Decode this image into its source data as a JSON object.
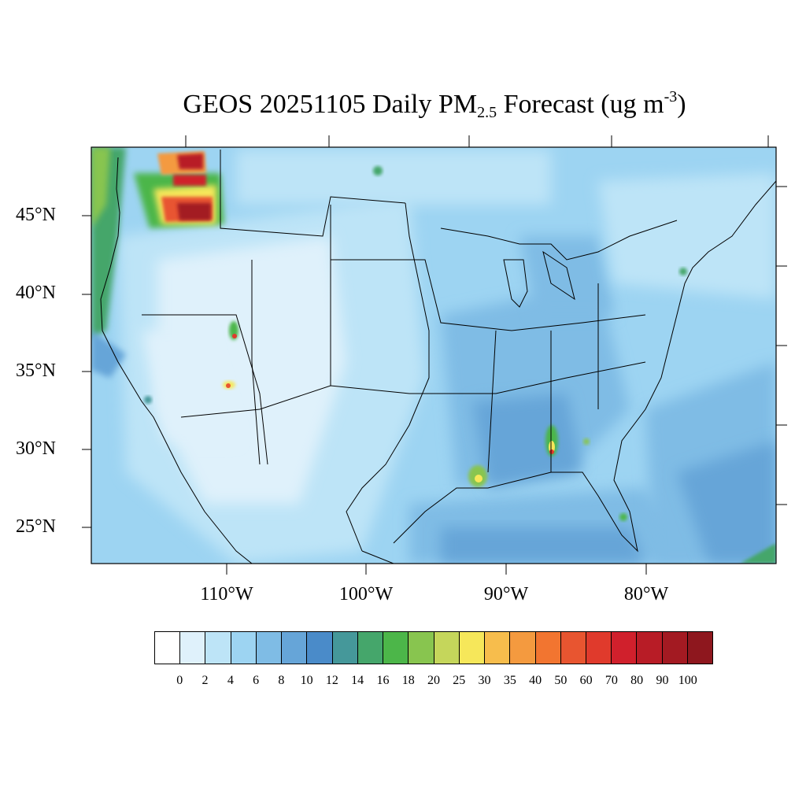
{
  "title": {
    "main": "GEOS 20251105 Daily PM",
    "subscript": "2.5",
    "rest": " Forecast (ug m",
    "superscript": "-3",
    "close": ")"
  },
  "map": {
    "lat_labels": [
      "45°N",
      "40°N",
      "35°N",
      "30°N",
      "25°N"
    ],
    "lon_labels": [
      "110°W",
      "100°W",
      "90°W",
      "80°W"
    ],
    "hotspots": [
      {
        "name": "northern-idaho-smoke",
        "level": "80-100"
      },
      {
        "name": "washington-cascades",
        "level": "90-100"
      },
      {
        "name": "utah-fire",
        "level": "70-80"
      },
      {
        "name": "arizona-fire",
        "level": "60-70"
      },
      {
        "name": "louisiana-coast",
        "level": "20-30"
      },
      {
        "name": "alabama-florida-border",
        "level": "70-80"
      },
      {
        "name": "lake-okeechobee",
        "level": "16-20"
      },
      {
        "name": "new-york-city",
        "level": "16-20"
      },
      {
        "name": "north-dakota-manitoba",
        "level": "16-20"
      }
    ]
  },
  "colorbar": {
    "colors": [
      "#ffffff",
      "#dff1fb",
      "#bde4f7",
      "#9dd4f2",
      "#7fbce5",
      "#66a5d8",
      "#4a8bc9",
      "#45989a",
      "#45a66b",
      "#4cb649",
      "#88c54f",
      "#c5d65b",
      "#f6e75a",
      "#f7bd4c",
      "#f49a3f",
      "#f27530",
      "#e85530",
      "#e03a2c",
      "#d0202c",
      "#b81c26",
      "#a31a22",
      "#8e171e"
    ],
    "ticks": [
      "0",
      "2",
      "4",
      "6",
      "8",
      "10",
      "12",
      "14",
      "16",
      "18",
      "20",
      "25",
      "30",
      "35",
      "40",
      "50",
      "60",
      "70",
      "80",
      "90",
      "100"
    ]
  }
}
